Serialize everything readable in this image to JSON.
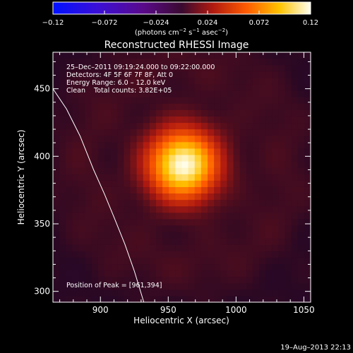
{
  "chart_data": {
    "type": "heatmap",
    "title": "Reconstructed RHESSI Image",
    "xlabel": "Heliocentric X (arcsec)",
    "ylabel": "Heliocentric Y (arcsec)",
    "xlim": [
      865,
      1055
    ],
    "ylim": [
      292,
      477
    ],
    "xticks": [
      900,
      950,
      1000,
      1050
    ],
    "yticks": [
      300,
      350,
      400,
      450
    ],
    "colorbar": {
      "range": [
        -0.12,
        0.12
      ],
      "ticks": [
        -0.12,
        -0.072,
        -0.024,
        0.024,
        0.072,
        0.12
      ],
      "tick_labels": [
        "−0.12",
        "−0.072",
        "−0.024",
        "0.024",
        "0.072",
        "0.12"
      ],
      "units_prefix": "(photons cm",
      "units_exp1": "−2",
      "units_mid": " s",
      "units_exp2": "−1",
      "units_mid2": " asec",
      "units_exp3": "−2",
      "units_suffix": ")"
    },
    "source": {
      "peak_x": 961,
      "peak_y": 394,
      "peak_value": 0.12,
      "width_arcsec": 28
    },
    "limb_curve": [
      [
        865,
        450
      ],
      [
        875,
        435
      ],
      [
        885,
        415
      ],
      [
        895,
        390
      ],
      [
        903,
        372
      ],
      [
        910,
        355
      ],
      [
        918,
        335
      ],
      [
        925,
        315
      ],
      [
        932,
        292
      ]
    ],
    "annotations": [
      "25–Dec–2011 09:19:24.000 to 09:22:00.000",
      "Detectors: 4F 5F 6F 7F 8F, Att 0",
      "Energy Range: 6.0 – 12.0 keV",
      "Clean    Total counts: 3.82E+05"
    ],
    "peak_label": "Position of Peak = [961,394]"
  },
  "footer": {
    "timestamp": "19–Aug–2013 22:13"
  }
}
